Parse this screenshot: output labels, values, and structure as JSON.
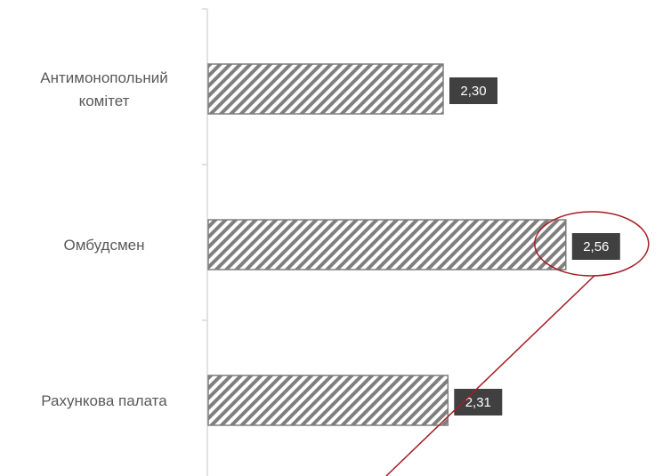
{
  "chart_data": {
    "type": "bar",
    "orientation": "horizontal",
    "categories": [
      [
        "Антимонопольний",
        "комітет"
      ],
      [
        "Омбудсмен"
      ],
      [
        "Рахункова палата"
      ]
    ],
    "values": [
      2.3,
      2.56,
      2.31
    ],
    "value_labels": [
      "2,30",
      "2,56",
      "2,31"
    ],
    "xlim": [
      1.8,
      2.6
    ],
    "grid": false,
    "legend": "none",
    "colors": {
      "bar_stroke": "#7f7f7f",
      "hatch": "#7f7f7f",
      "label_box": "#404040",
      "label_text": "#ffffff",
      "category_text": "#595959",
      "axis": "#d9d9d9",
      "annotation": "#a51c24"
    },
    "annotation": {
      "type": "ellipse-callout",
      "target_index": 1
    }
  }
}
